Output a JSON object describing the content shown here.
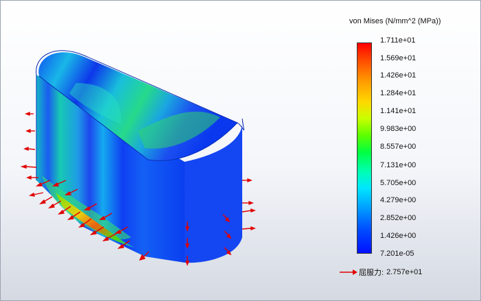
{
  "legend": {
    "title": "von Mises (N/mm^2 (MPa))",
    "labels": [
      "1.711e+01",
      "1.569e+01",
      "1.426e+01",
      "1.284e+01",
      "1.141e+01",
      "9.983e+00",
      "8.557e+00",
      "7.131e+00",
      "5.705e+00",
      "4.279e+00",
      "2.852e+00",
      "1.426e+00",
      "7.201e-05"
    ],
    "colors": [
      "#ff0000",
      "#ff9a00",
      "#ffd800",
      "#5cff00",
      "#00ff42",
      "#00e6ff",
      "#0052ff",
      "#0010ff"
    ]
  },
  "yield": {
    "label": "屈服力:",
    "value": "2.757e+01",
    "arrow_color": "#e00000"
  },
  "model": {
    "icon": "stress-plot-model",
    "body_color": "#1a4ff0",
    "load_arrow_color": "#e00000"
  }
}
